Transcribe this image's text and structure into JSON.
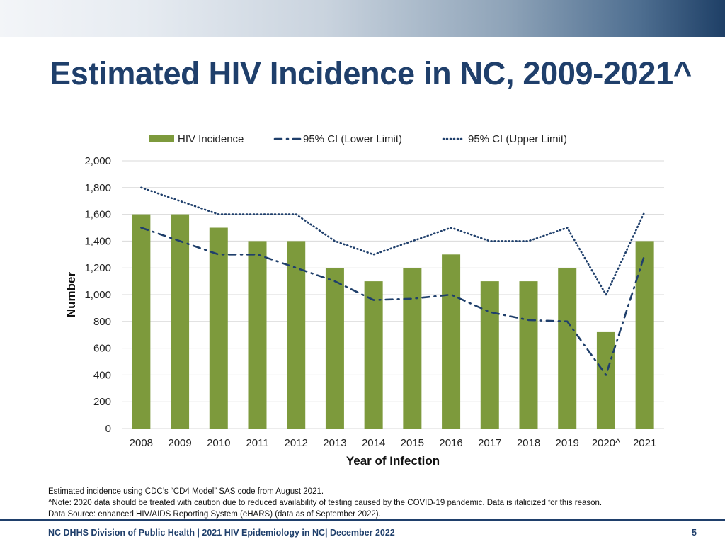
{
  "slide": {
    "title": "Estimated HIV Incidence in NC, 2009-2021^",
    "notes": [
      "Estimated incidence using CDC’s “CD4 Model” SAS code from August 2021.",
      "^Note: 2020 data should be treated with caution due to reduced availability  of testing caused by the COVID-19 pandemic. Data is italicized for this reason.",
      "Data Source: enhanced HIV/AIDS Reporting System (eHARS) (data as of September 2022)."
    ],
    "footer": "NC DHHS Division of Public Health | 2021 HIV Epidemiology in NC| December 2022",
    "page_number": "5"
  },
  "colors": {
    "bar": "#7d9a3c",
    "ci_line": "#1f3f6b",
    "title": "#1f3f6b",
    "grid": "#d9d9d9"
  },
  "chart_data": {
    "type": "bar",
    "title": "",
    "xlabel": "Year of Infection",
    "ylabel": "Number",
    "ylim": [
      0,
      2000
    ],
    "yticks": [
      0,
      200,
      400,
      600,
      800,
      1000,
      1200,
      1400,
      1600,
      1800,
      2000
    ],
    "ytick_labels": [
      "0",
      "200",
      "400",
      "600",
      "800",
      "1,000",
      "1,200",
      "1,400",
      "1,600",
      "1,800",
      "2,000"
    ],
    "categories": [
      "2008",
      "2009",
      "2010",
      "2011",
      "2012",
      "2013",
      "2014",
      "2015",
      "2016",
      "2017",
      "2018",
      "2019",
      "2020^",
      "2021"
    ],
    "series": [
      {
        "name": "HIV Incidence",
        "type": "bar",
        "values": [
          1600,
          1600,
          1500,
          1400,
          1400,
          1200,
          1100,
          1200,
          1300,
          1100,
          1100,
          1200,
          720,
          1400
        ]
      },
      {
        "name": "95% CI (Lower Limit)",
        "type": "line",
        "style": "dash-dot",
        "values": [
          1500,
          1400,
          1300,
          1300,
          1200,
          1100,
          960,
          970,
          1000,
          870,
          810,
          800,
          400,
          1300
        ]
      },
      {
        "name": "95% CI (Upper Limit)",
        "type": "line",
        "style": "dotted",
        "values": [
          1800,
          1700,
          1600,
          1600,
          1600,
          1400,
          1300,
          1400,
          1500,
          1400,
          1400,
          1500,
          1000,
          1620
        ]
      }
    ],
    "legend": "top-center",
    "grid": true
  }
}
